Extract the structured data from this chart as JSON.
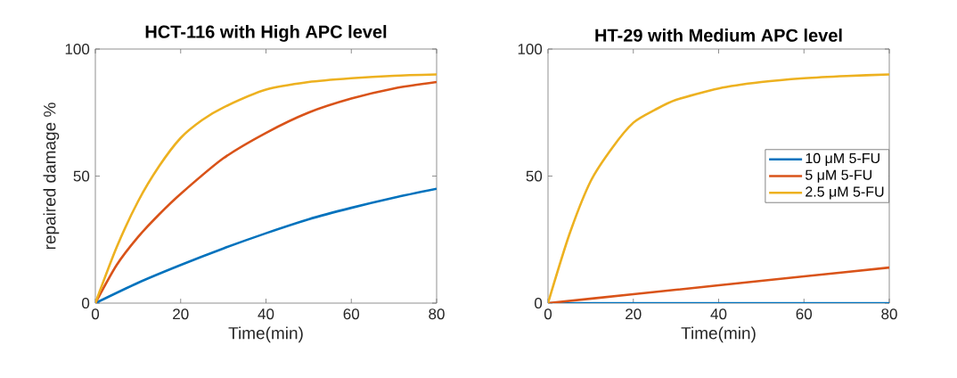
{
  "chart_data": [
    {
      "type": "line",
      "title": "HCT-116 with High APC level",
      "xlabel": "Time(min)",
      "ylabel": "repaired damage %",
      "xlim": [
        0,
        80
      ],
      "ylim": [
        0,
        100
      ],
      "xticks": [
        0,
        20,
        40,
        60,
        80
      ],
      "yticks": [
        0,
        50,
        100
      ],
      "legend": false,
      "series": [
        {
          "color": "#0072bd",
          "x": [
            0,
            10,
            20,
            30,
            40,
            50,
            60,
            70,
            80
          ],
          "values": [
            0,
            8,
            15,
            21.5,
            27.5,
            33,
            37.5,
            41.5,
            45
          ]
        },
        {
          "color": "#d95319",
          "x": [
            0,
            5,
            10,
            15,
            20,
            30,
            40,
            50,
            60,
            70,
            80
          ],
          "values": [
            0,
            15,
            26,
            35,
            43,
            57,
            67,
            75,
            80.5,
            84.5,
            87
          ]
        },
        {
          "color": "#edb120",
          "x": [
            0,
            5,
            10,
            15,
            20,
            25,
            30,
            40,
            50,
            60,
            70,
            80
          ],
          "values": [
            0,
            22,
            40,
            54,
            65,
            72,
            77,
            84,
            87,
            88.5,
            89.5,
            90
          ]
        }
      ]
    },
    {
      "type": "line",
      "title": "HT-29 with Medium APC level",
      "xlabel": "Time(min)",
      "xlim": [
        0,
        80
      ],
      "ylim": [
        0,
        100
      ],
      "xticks": [
        0,
        20,
        40,
        60,
        80
      ],
      "yticks": [
        0,
        50,
        100
      ],
      "legend": "right",
      "series": [
        {
          "name": "10 μM 5-FU",
          "color": "#0072bd",
          "x": [
            0,
            20,
            40,
            60,
            80
          ],
          "values": [
            0,
            0,
            0,
            0,
            0
          ]
        },
        {
          "name": "5 μM 5-FU",
          "color": "#d95319",
          "x": [
            0,
            20,
            40,
            60,
            80
          ],
          "values": [
            0,
            3.5,
            7,
            10.5,
            14
          ]
        },
        {
          "name": "2.5 μM 5-FU",
          "color": "#edb120",
          "x": [
            0,
            5,
            10,
            15,
            20,
            25,
            30,
            40,
            50,
            60,
            70,
            80
          ],
          "values": [
            0,
            27,
            48,
            61,
            71,
            76,
            80,
            84.5,
            87,
            88.5,
            89.4,
            90
          ]
        }
      ]
    }
  ]
}
